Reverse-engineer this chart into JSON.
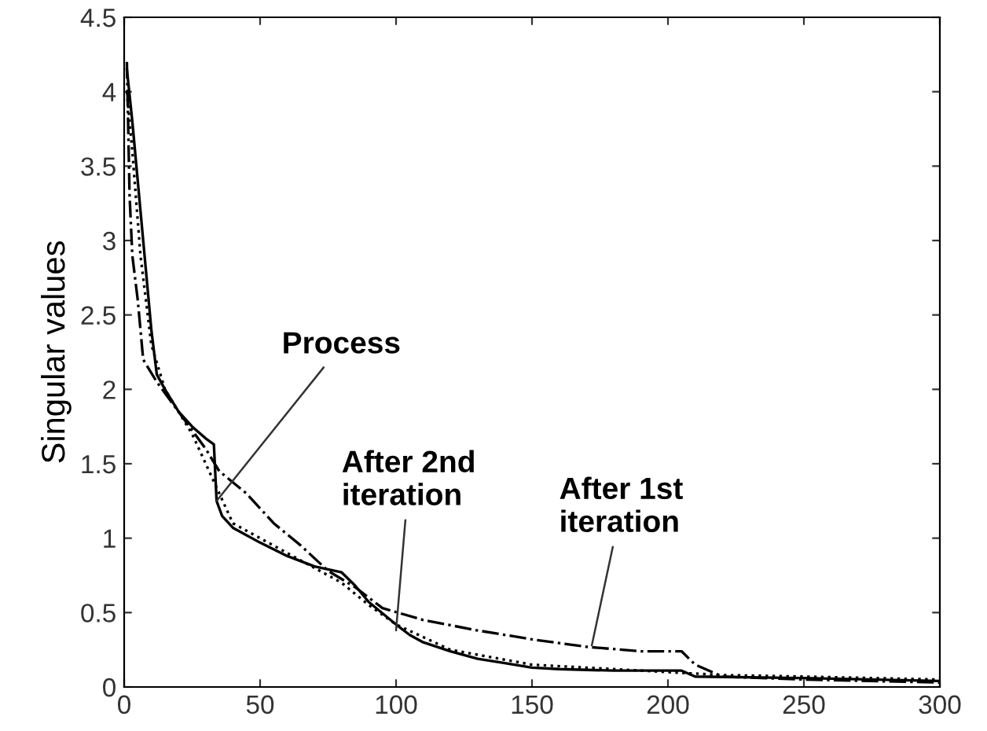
{
  "chart_data": {
    "type": "line",
    "ylabel": "Singular values",
    "xlim": [
      0,
      300
    ],
    "ylim": [
      0,
      4.5
    ],
    "xticks": [
      0,
      50,
      100,
      150,
      200,
      250,
      300
    ],
    "yticks": [
      0,
      0.5,
      1,
      1.5,
      2,
      2.5,
      3,
      3.5,
      4,
      4.5
    ],
    "grid": false,
    "legend": false,
    "series": [
      {
        "color": "#000000",
        "line_style": "solid",
        "x": [
          1,
          3,
          5,
          8,
          10,
          12,
          15,
          20,
          25,
          30,
          33,
          34,
          36,
          40,
          50,
          60,
          70,
          80,
          85,
          90,
          100,
          105,
          110,
          120,
          130,
          140,
          150,
          160,
          180,
          205,
          210,
          250,
          300
        ],
        "values": [
          4.15,
          3.8,
          3.4,
          2.8,
          2.4,
          2.1,
          2.0,
          1.85,
          1.75,
          1.67,
          1.63,
          1.25,
          1.15,
          1.07,
          0.97,
          0.88,
          0.81,
          0.77,
          0.68,
          0.57,
          0.42,
          0.35,
          0.3,
          0.24,
          0.19,
          0.16,
          0.13,
          0.12,
          0.11,
          0.11,
          0.07,
          0.06,
          0.04
        ]
      },
      {
        "color": "#000000",
        "line_style": "dotted",
        "x": [
          1,
          3,
          6,
          10,
          15,
          25,
          30,
          40,
          60,
          80,
          90,
          100,
          120,
          150,
          200,
          220,
          250,
          300
        ],
        "values": [
          4.0,
          3.6,
          2.9,
          2.3,
          2.0,
          1.7,
          1.5,
          1.1,
          0.9,
          0.7,
          0.55,
          0.42,
          0.25,
          0.15,
          0.1,
          0.08,
          0.07,
          0.05
        ]
      },
      {
        "color": "#000000",
        "line_style": "dashdot",
        "x": [
          1,
          2,
          3,
          5,
          7,
          12,
          20,
          30,
          35,
          45,
          55,
          65,
          75,
          85,
          95,
          110,
          130,
          150,
          170,
          190,
          205,
          210,
          220,
          250,
          300
        ],
        "values": [
          4.2,
          3.3,
          2.9,
          2.6,
          2.2,
          2.05,
          1.85,
          1.6,
          1.45,
          1.3,
          1.1,
          0.95,
          0.78,
          0.67,
          0.53,
          0.45,
          0.38,
          0.32,
          0.27,
          0.24,
          0.24,
          0.15,
          0.07,
          0.05,
          0.03
        ]
      }
    ],
    "annotations": [
      {
        "text": "Process",
        "x": 34,
        "y": 1.25
      },
      {
        "text": "After 2nd\niteration",
        "x": 100,
        "y": 0.38
      },
      {
        "text": "After 1st\niteration",
        "x": 172,
        "y": 0.28
      }
    ]
  }
}
